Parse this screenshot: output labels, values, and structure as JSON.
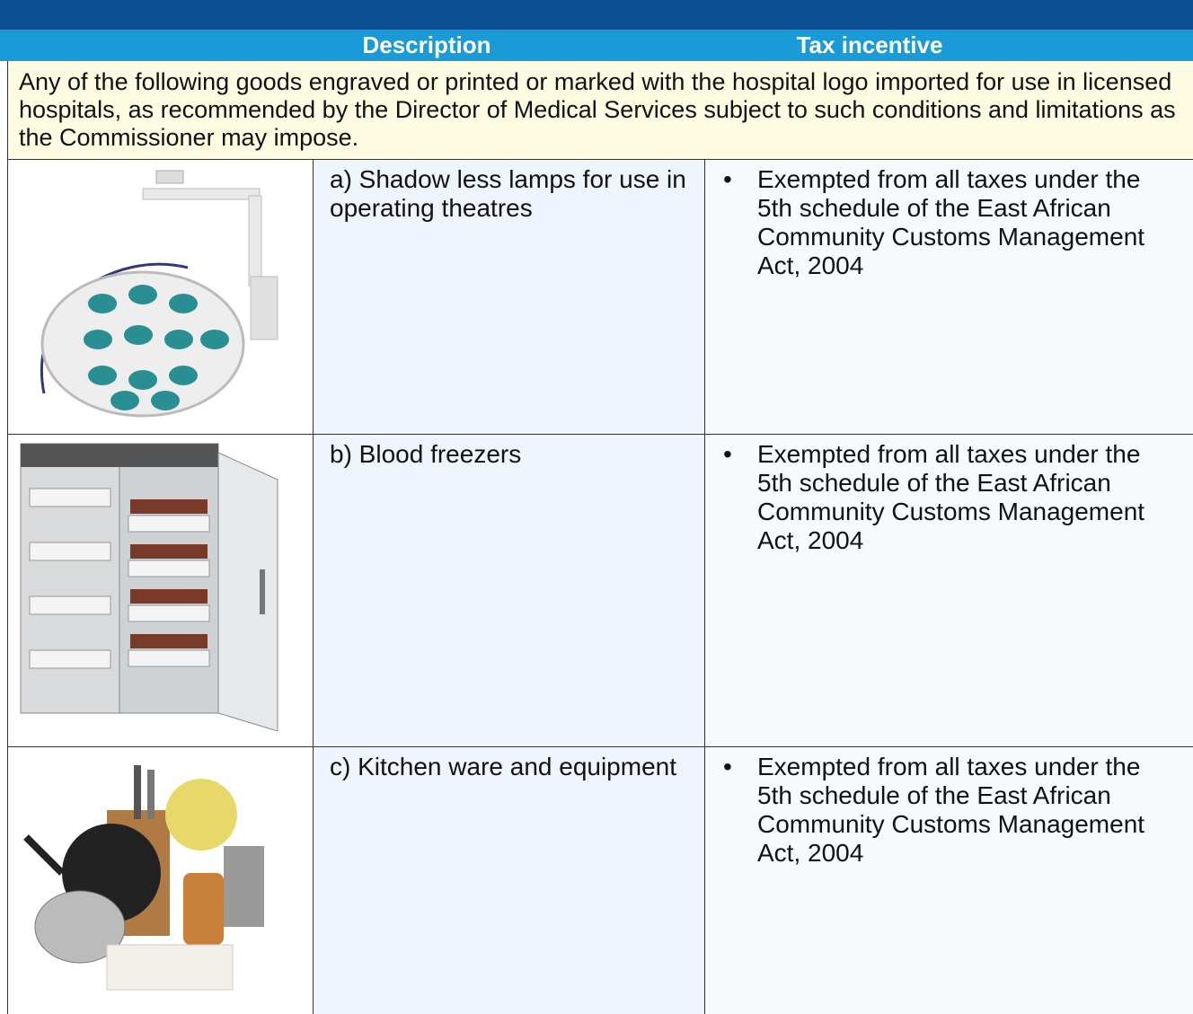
{
  "table": {
    "columns": [
      "Description",
      "Tax incentive"
    ],
    "intro": "Any of the following goods engraved or printed or marked with the hospital logo imported for use in licensed hospitals, as recommended by the Director of Medical Services subject to such conditions and limitations as the Commissioner may impose.",
    "rows": [
      {
        "description": "a) Shadow less lamps for use in operating theatres",
        "tax_incentive": "Exempted from all taxes under the 5th schedule of the East African Community Customs Management Act, 2004"
      },
      {
        "description": "b) Blood freezers",
        "tax_incentive": "Exempted from all taxes under the 5th schedule of the East African Community Customs Management Act, 2004"
      },
      {
        "description": "c) Kitchen ware and equipment",
        "tax_incentive": "Exempted from all taxes under the 5th schedule of the East African Community Customs Management Act, 2004"
      }
    ]
  }
}
